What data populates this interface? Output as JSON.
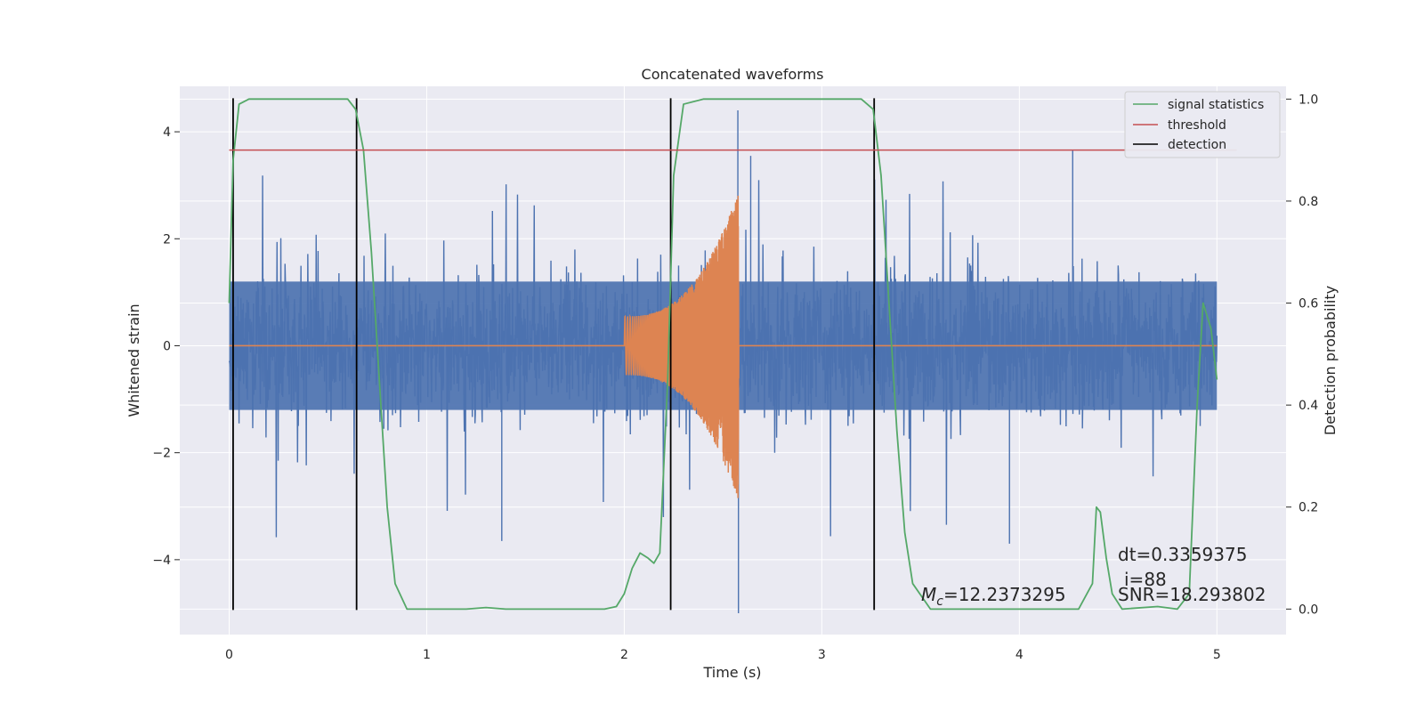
{
  "chart_data": {
    "type": "line",
    "title": "Concatenated waveforms",
    "xlabel": "Time (s)",
    "ylabel": "Whitened strain",
    "y2label": "Detection probability",
    "xlim": [
      -0.25,
      5.35
    ],
    "ylim": [
      -5.4,
      4.85
    ],
    "y2lim": [
      -0.05,
      1.025
    ],
    "xticks": [
      0,
      1,
      2,
      3,
      4,
      5
    ],
    "yticks": [
      -4,
      -2,
      0,
      2,
      4
    ],
    "y2ticks": [
      0.0,
      0.2,
      0.4,
      0.6,
      0.8,
      1.0
    ],
    "xtick_labels": [
      "0",
      "1",
      "2",
      "3",
      "4",
      "5"
    ],
    "ytick_labels": [
      "−4",
      "−2",
      "0",
      "2",
      "4"
    ],
    "y2tick_labels": [
      "0.0",
      "0.2",
      "0.4",
      "0.6",
      "0.8",
      "1.0"
    ],
    "grid": true,
    "legend_position": "top-right",
    "colors": {
      "strain": "#4c72b0",
      "template": "#dd8452",
      "signal_statistics": "#55a868",
      "threshold": "#c44e52",
      "detection": "#000000",
      "background": "#eaeaf2",
      "grid": "#ffffff"
    },
    "series": [
      {
        "name": "signal statistics",
        "axis": "right",
        "x": [
          0.0,
          0.02,
          0.05,
          0.1,
          0.2,
          0.5,
          0.6,
          0.64,
          0.68,
          0.72,
          0.76,
          0.8,
          0.84,
          0.9,
          1.2,
          1.3,
          1.4,
          1.9,
          1.96,
          2.0,
          2.04,
          2.08,
          2.12,
          2.15,
          2.18,
          2.22,
          2.25,
          2.3,
          2.4,
          3.2,
          3.26,
          3.3,
          3.34,
          3.38,
          3.42,
          3.46,
          3.55,
          4.3,
          4.37,
          4.39,
          4.41,
          4.44,
          4.47,
          4.52,
          4.7,
          4.8,
          4.86,
          4.9,
          4.93,
          4.97,
          5.0
        ],
        "y": [
          0.6,
          0.88,
          0.99,
          1.0,
          1.0,
          1.0,
          1.0,
          0.98,
          0.9,
          0.7,
          0.45,
          0.2,
          0.05,
          0.0,
          0.0,
          0.003,
          0.0,
          0.0,
          0.005,
          0.03,
          0.08,
          0.11,
          0.1,
          0.09,
          0.11,
          0.45,
          0.85,
          0.99,
          1.0,
          1.0,
          0.98,
          0.85,
          0.6,
          0.35,
          0.15,
          0.05,
          0.0,
          0.0,
          0.05,
          0.2,
          0.19,
          0.1,
          0.03,
          0.0,
          0.005,
          0.0,
          0.03,
          0.4,
          0.6,
          0.55,
          0.45
        ]
      },
      {
        "name": "threshold",
        "axis": "right",
        "x": [
          0.0,
          5.1
        ],
        "y": [
          0.9,
          0.9
        ]
      },
      {
        "name": "detection",
        "axis": "left",
        "type": "vlines",
        "x": [
          0.02,
          0.645,
          2.235,
          3.265
        ]
      }
    ],
    "strain_series": {
      "axis": "left",
      "x_range": [
        0.0,
        5.0
      ],
      "envelope": 1.2,
      "typical_peak": 2.5,
      "max_peak": 4.4,
      "min_peak": -5.0
    },
    "template_series": {
      "axis": "left",
      "x_range": [
        0.0,
        5.0
      ],
      "chirp_start": 2.0,
      "chirp_end": 2.58,
      "start_amplitude": 0.55,
      "end_amplitude": 2.9
    },
    "annotations": [
      {
        "text": "dt=0.3359375"
      },
      {
        "text": "i=88"
      },
      {
        "text": "=12.2373295",
        "symbol": "M",
        "subscript": "c"
      },
      {
        "text": "SNR=18.293802"
      }
    ]
  }
}
